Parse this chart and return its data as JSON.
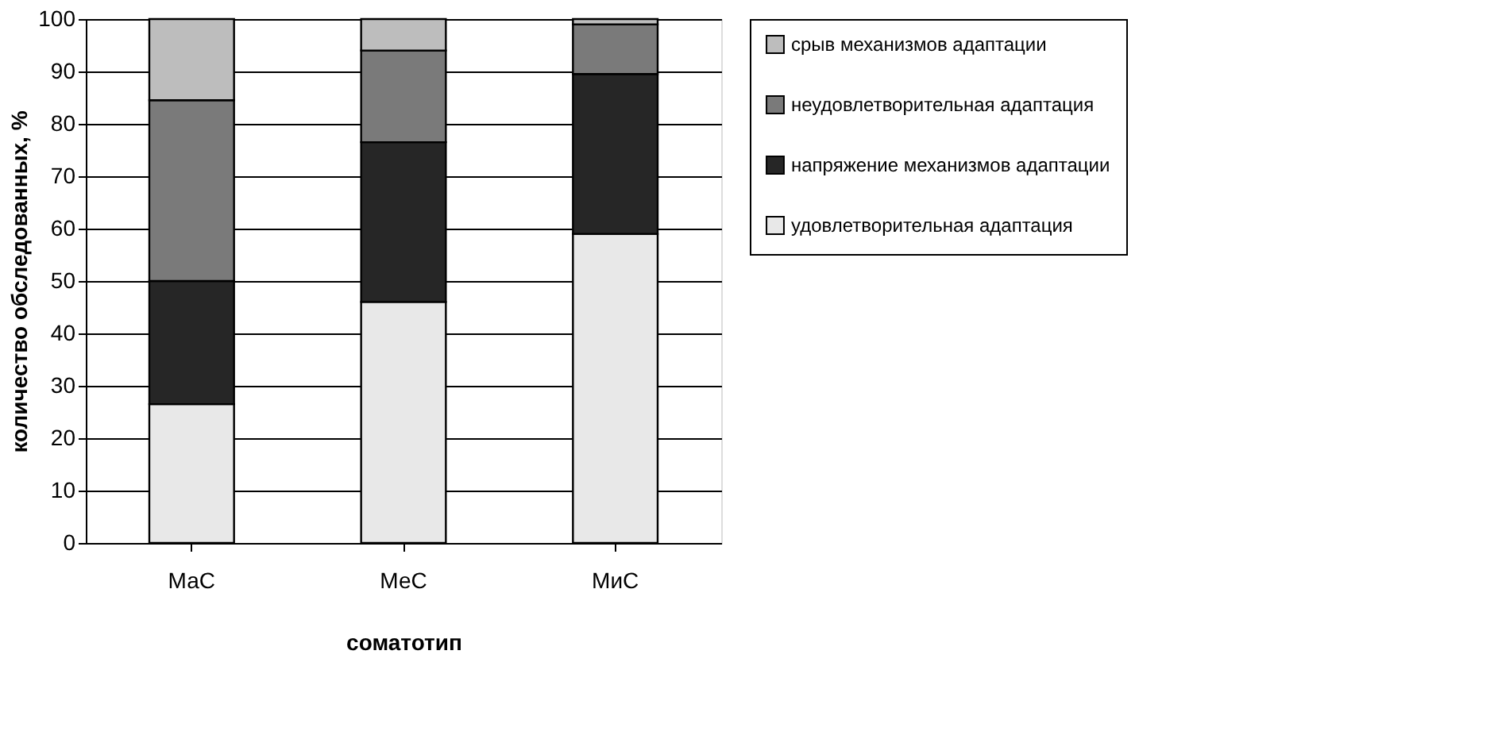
{
  "chart_data": {
    "type": "bar",
    "stacked": true,
    "xlabel": "соматотип",
    "ylabel": "количество обследованных, %",
    "categories": [
      "МаС",
      "МеС",
      "МиС"
    ],
    "series": [
      {
        "name": "удовлетворительная адаптация",
        "color": "#e8e8e8",
        "values": [
          26.5,
          46,
          59
        ]
      },
      {
        "name": "напряжение механизмов адаптации",
        "color": "#262626",
        "values": [
          23.5,
          30.5,
          30.5
        ]
      },
      {
        "name": "неудовлетворительная адаптация",
        "color": "#7a7a7a",
        "values": [
          34.5,
          17.5,
          9.5
        ]
      },
      {
        "name": "срыв механизмов адаптации",
        "color": "#bdbdbd",
        "values": [
          15.5,
          6,
          1
        ]
      }
    ],
    "ylim": [
      0,
      100
    ],
    "yticks": [
      0,
      10,
      20,
      30,
      40,
      50,
      60,
      70,
      80,
      90,
      100
    ],
    "grid": "y",
    "legend": "right"
  }
}
